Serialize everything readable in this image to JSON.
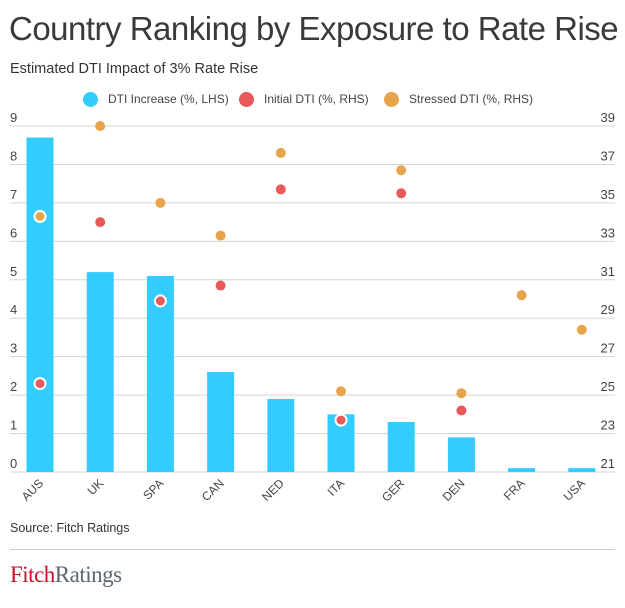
{
  "colors": {
    "bar": "#33ccff",
    "initial": "#e8595a",
    "stressed": "#e8a44a",
    "grid": "#d6d6d6",
    "logo_fitch": "#c8102e",
    "logo_ratings": "#5b6770"
  },
  "legend": [
    {
      "label": "DTI Increase (%, LHS)",
      "color": "#33ccff"
    },
    {
      "label": "Initial DTI (%, RHS)",
      "color": "#e8595a"
    },
    {
      "label": "Stressed DTI (%, RHS)",
      "color": "#e8a44a"
    }
  ],
  "chart_data": {
    "type": "bar",
    "title": "Country Ranking by Exposure to Rate Rise",
    "subtitle": "Estimated DTI Impact of 3% Rate Rise",
    "xlabel": "",
    "ylabel": "",
    "legend_position": "top-center",
    "grid": true,
    "categories": [
      "AUS",
      "UK",
      "SPA",
      "CAN",
      "NED",
      "ITA",
      "GER",
      "DEN",
      "FRA",
      "USA"
    ],
    "y_left": {
      "label": "DTI Increase (%)",
      "range": [
        0,
        9
      ],
      "ticks": [
        "0",
        "1",
        "2",
        "3",
        "4",
        "5",
        "6",
        "7",
        "8",
        "9"
      ]
    },
    "y_right": {
      "label": "DTI (%)",
      "range": [
        21,
        39
      ],
      "ticks": [
        "21",
        "23",
        "25",
        "27",
        "29",
        "31",
        "33",
        "35",
        "37",
        "39"
      ]
    },
    "series": [
      {
        "name": "DTI Increase (%, LHS)",
        "type": "bar",
        "axis": "left",
        "values": [
          8.7,
          5.2,
          5.1,
          2.6,
          1.9,
          1.5,
          1.3,
          0.9,
          0.1,
          0.1
        ]
      },
      {
        "name": "Initial DTI (%, RHS)",
        "type": "scatter",
        "axis": "right",
        "values": [
          25.6,
          34.0,
          29.9,
          30.7,
          35.7,
          23.7,
          35.5,
          24.2,
          null,
          null
        ]
      },
      {
        "name": "Stressed DTI (%, RHS)",
        "type": "scatter",
        "axis": "right",
        "values": [
          34.3,
          39.0,
          35.0,
          33.3,
          37.6,
          25.2,
          36.7,
          25.1,
          30.2,
          28.4
        ]
      }
    ]
  },
  "source": "Source: Fitch Ratings",
  "logo": {
    "part1": "Fitch",
    "part2": "Ratings"
  }
}
